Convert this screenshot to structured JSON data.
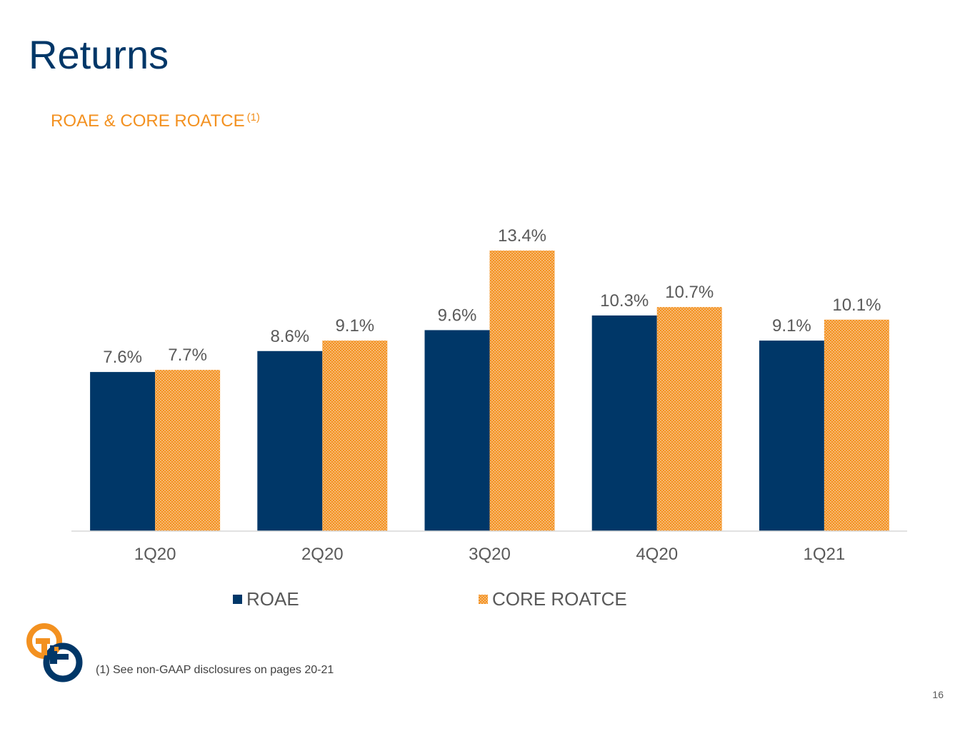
{
  "slide": {
    "title": "Returns",
    "chart_title": "ROAE & CORE ROATCE",
    "chart_title_note": "(1)",
    "footnote": "(1) See non-GAAP disclosures on pages 20-21",
    "page_number": "16"
  },
  "colors": {
    "title": "#003768",
    "roae": "#003768",
    "core_roatce": "#F39120",
    "label_text": "#595959"
  },
  "chart_data": {
    "type": "bar",
    "title": "ROAE & CORE ROATCE (1)",
    "categories": [
      "1Q20",
      "2Q20",
      "3Q20",
      "4Q20",
      "1Q21"
    ],
    "series": [
      {
        "name": "ROAE",
        "values": [
          7.6,
          8.6,
          9.6,
          10.3,
          9.1
        ],
        "labels": [
          "7.6%",
          "8.6%",
          "9.6%",
          "10.3%",
          "9.1%"
        ],
        "color": "#003768",
        "fill": "solid"
      },
      {
        "name": "CORE ROATCE",
        "values": [
          7.7,
          9.1,
          13.4,
          10.7,
          10.1
        ],
        "labels": [
          "7.7%",
          "9.1%",
          "13.4%",
          "10.7%",
          "10.1%"
        ],
        "color": "#F39120",
        "fill": "dotted-pattern"
      }
    ],
    "ylim": [
      0,
      13.4
    ],
    "grid": false,
    "legend_position": "bottom"
  }
}
